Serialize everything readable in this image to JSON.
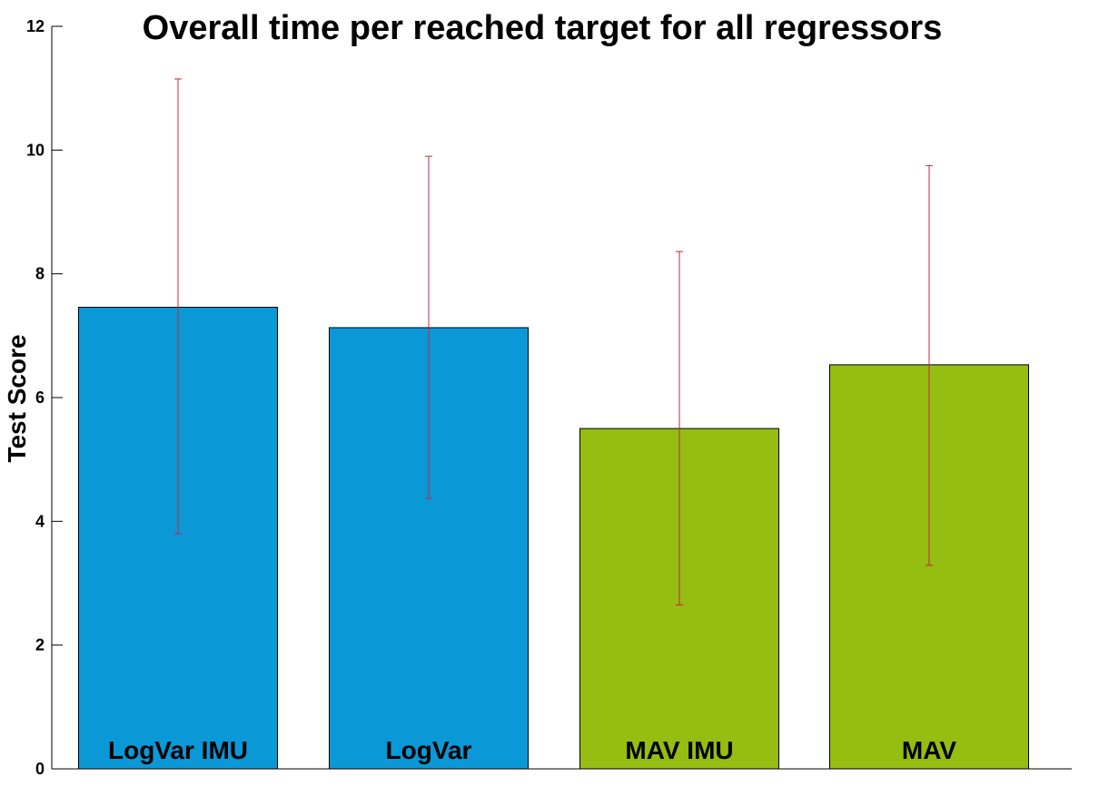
{
  "chart_data": {
    "type": "bar",
    "title": "Overall time per reached target for all regressors",
    "xlabel": "",
    "ylabel": "Test Score",
    "ylim": [
      0,
      12
    ],
    "yticks": [
      "0",
      "2",
      "4",
      "6",
      "8",
      "10",
      "12"
    ],
    "grid": false,
    "categories": [
      "LogVar IMU",
      "LogVar",
      "MAV IMU",
      "MAV"
    ],
    "values": [
      7.46,
      7.13,
      5.5,
      6.53
    ],
    "error_bars": {
      "lower": [
        3.8,
        4.37,
        2.65,
        3.29
      ],
      "upper": [
        11.15,
        9.9,
        8.36,
        9.75
      ],
      "color": "#c0283c"
    },
    "bar_colors": [
      "#0b98d6",
      "#0b98d6",
      "#95bd12",
      "#95bd12"
    ]
  }
}
